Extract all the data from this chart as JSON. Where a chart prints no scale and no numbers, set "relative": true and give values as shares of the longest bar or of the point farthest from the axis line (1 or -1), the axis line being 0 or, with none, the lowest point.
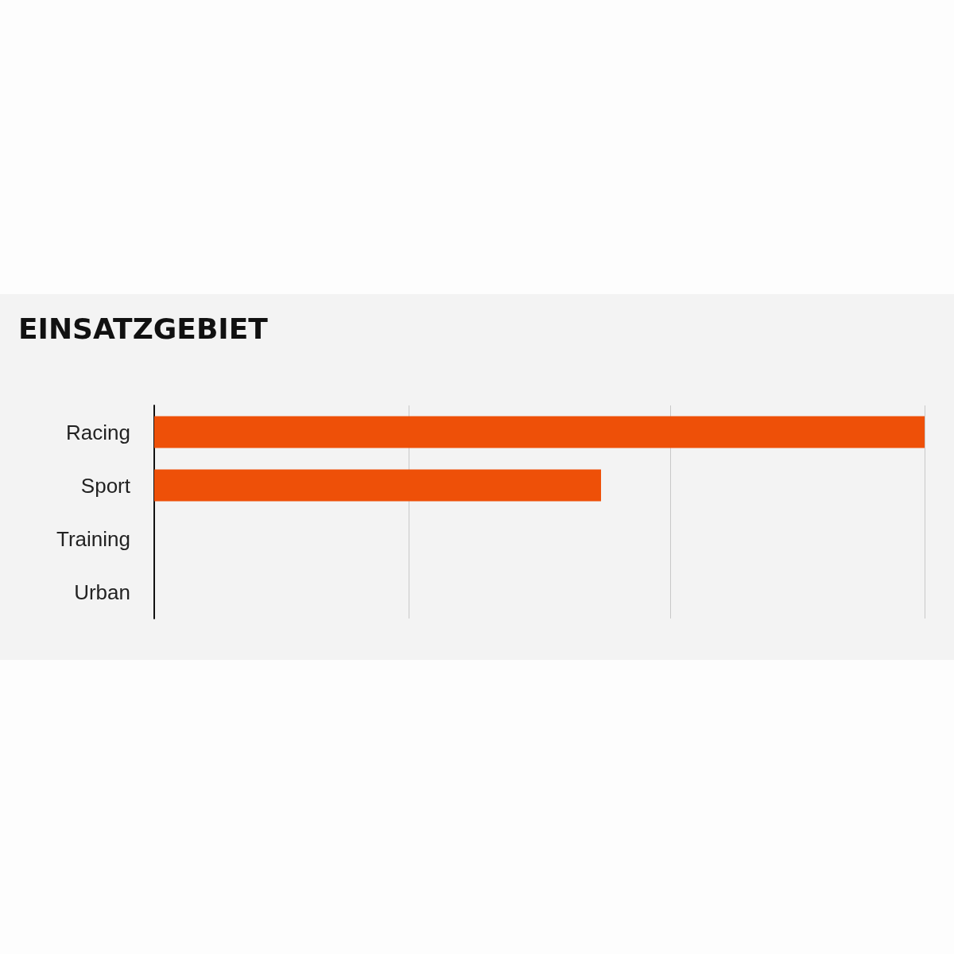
{
  "chart_data": {
    "type": "bar",
    "title": "EINSATZGEBIET",
    "orientation": "horizontal",
    "relative": true,
    "categories": [
      "Racing",
      "Sport",
      "Training",
      "Urban"
    ],
    "values": [
      1,
      0.58,
      0,
      0
    ],
    "color": "#ee5008",
    "ref_lines": [
      {
        "axis": "x",
        "value": 0.333,
        "color": "#c8c8c8"
      },
      {
        "axis": "x",
        "value": 0.667,
        "color": "#c8c8c8"
      },
      {
        "axis": "x",
        "value": 1,
        "color": "#c8c8c8"
      }
    ]
  }
}
